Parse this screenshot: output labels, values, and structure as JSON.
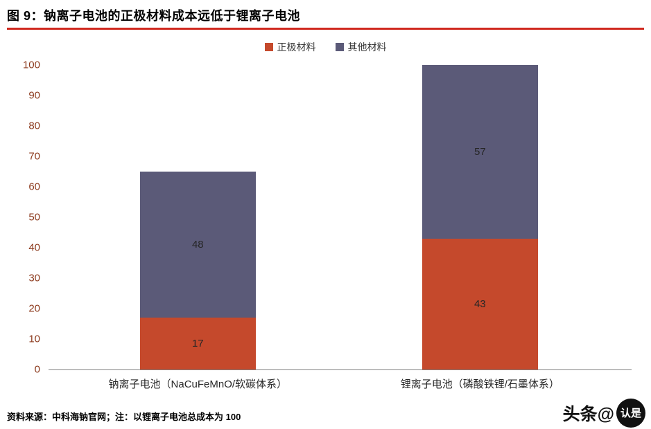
{
  "header": {
    "title": "图 9：钠离子电池的正极材料成本远低于锂离子电池"
  },
  "chart_data": {
    "type": "bar",
    "stacked": true,
    "title": "钠离子电池的正极材料成本远低于锂离子电池",
    "categories": [
      "钠离子电池（NaCuFeMnO/软碳体系）",
      "锂离子电池（磷酸铁锂/石墨体系）"
    ],
    "series": [
      {
        "name": "正极材料",
        "color": "#C5492C",
        "values": [
          17,
          43
        ]
      },
      {
        "name": "其他材料",
        "color": "#5B5A78",
        "values": [
          48,
          57
        ]
      }
    ],
    "totals": [
      65,
      100
    ],
    "xlabel": "",
    "ylabel": "",
    "ylim": [
      0,
      100
    ],
    "ytick_step": 10,
    "grid": false,
    "legend_position": "top"
  },
  "footer": {
    "source_note": "资料来源：中科海钠官网；注：以锂离子电池总成本为 100"
  },
  "watermark": {
    "prefix": "头条@",
    "badge": "认是"
  },
  "colors": {
    "accent_red": "#D0281E",
    "axis_text": "#8C3A1D",
    "axis_line": "#7F7F7F",
    "bar_label": "#262626",
    "cathode_orange": "#C5492C",
    "other_purple": "#5B5A78"
  }
}
